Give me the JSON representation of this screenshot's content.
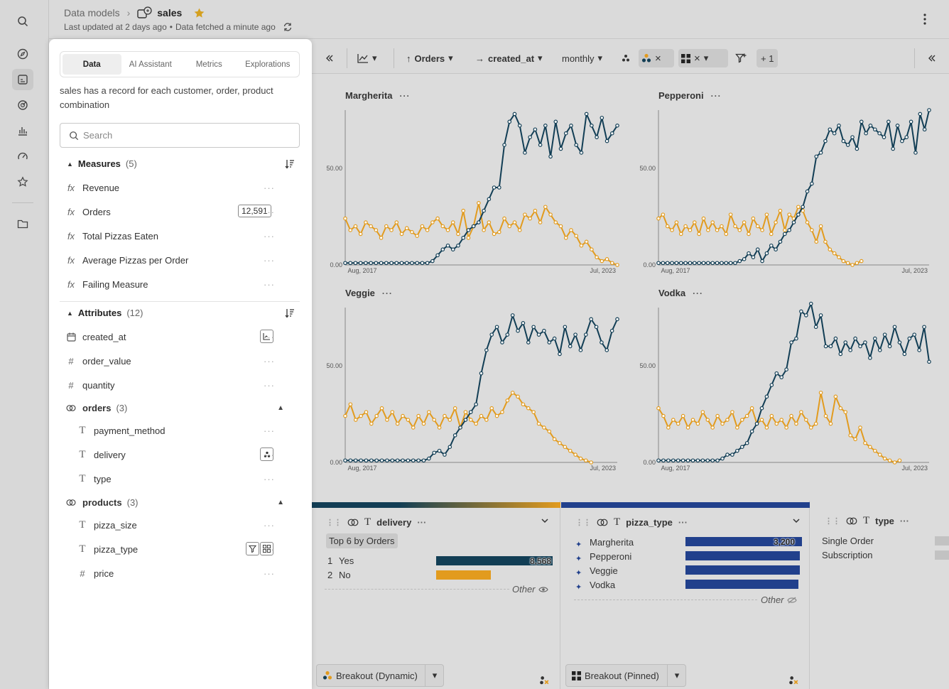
{
  "header": {
    "breadcrumb_root": "Data models",
    "model_name": "sales",
    "last_updated": "Last updated at 2 days ago",
    "bullet": "•",
    "data_fetched": "Data fetched a minute ago"
  },
  "toolbar": {
    "measure": "Orders",
    "dimension": "created_at",
    "granularity": "monthly",
    "extra_filters": "+ 1"
  },
  "panel": {
    "tabs": [
      "Data",
      "AI Assistant",
      "Metrics",
      "Explorations"
    ],
    "description": "sales has a record for each customer, order, product combination",
    "search_placeholder": "Search",
    "measures_title": "Measures",
    "measures_count": "(5)",
    "measures": [
      {
        "label": "Revenue"
      },
      {
        "label": "Orders",
        "badge": "12,591"
      },
      {
        "label": "Total Pizzas Eaten"
      },
      {
        "label": "Average Pizzas per Order"
      },
      {
        "label": "Failing Measure"
      }
    ],
    "attributes_title": "Attributes",
    "attributes_count": "(12)",
    "attributes": [
      {
        "label": "created_at",
        "icon": "calendar"
      },
      {
        "label": "order_value",
        "icon": "#"
      },
      {
        "label": "quantity",
        "icon": "#"
      }
    ],
    "groups": [
      {
        "label": "orders",
        "count": "(3)",
        "items": [
          "payment_method",
          "delivery",
          "type"
        ]
      },
      {
        "label": "products",
        "count": "(3)",
        "items": [
          "pizza_size",
          "pizza_type",
          "price"
        ]
      }
    ],
    "products_price_icon": "#",
    "text_icon": "T",
    "fx_icon": "fx"
  },
  "chart_data": [
    {
      "type": "line",
      "title": "Margherita",
      "x_start": "Aug, 2017",
      "x_end": "Jul, 2023",
      "y_ticks": [
        "0.00",
        "50.00"
      ],
      "ylim": [
        0,
        80
      ],
      "series": [
        {
          "name": "No",
          "color": "#e29b1e",
          "values": [
            24,
            18,
            20,
            16,
            22,
            20,
            18,
            14,
            20,
            18,
            22,
            16,
            19,
            17,
            15,
            20,
            18,
            22,
            24,
            20,
            18,
            22,
            16,
            28,
            14,
            20,
            32,
            18,
            22,
            16,
            17,
            24,
            20,
            22,
            18,
            26,
            24,
            28,
            22,
            30,
            26,
            22,
            20,
            14,
            18,
            15,
            10,
            12,
            8,
            4,
            2,
            3,
            1,
            0
          ]
        },
        {
          "name": "Yes",
          "color": "#123e55",
          "values": [
            1,
            1,
            1,
            1,
            1,
            1,
            1,
            1,
            1,
            1,
            1,
            1,
            1,
            1,
            1,
            1,
            1,
            2,
            5,
            8,
            10,
            8,
            10,
            14,
            18,
            20,
            22,
            28,
            34,
            40,
            40,
            62,
            74,
            78,
            72,
            58,
            66,
            70,
            62,
            72,
            56,
            74,
            60,
            68,
            72,
            62,
            58,
            78,
            72,
            66,
            76,
            64,
            68,
            72
          ]
        }
      ]
    },
    {
      "type": "line",
      "title": "Pepperoni",
      "x_start": "Aug, 2017",
      "x_end": "Jul, 2023",
      "y_ticks": [
        "0.00",
        "50.00"
      ],
      "ylim": [
        0,
        80
      ],
      "series": [
        {
          "name": "No",
          "color": "#e29b1e",
          "values": [
            24,
            26,
            20,
            18,
            22,
            16,
            20,
            18,
            22,
            16,
            24,
            18,
            22,
            18,
            20,
            16,
            26,
            20,
            18,
            22,
            16,
            24,
            20,
            18,
            26,
            16,
            22,
            28,
            18,
            26,
            24,
            30,
            28,
            22,
            18,
            12,
            20,
            12,
            8,
            6,
            4,
            2,
            1,
            0,
            1,
            2
          ]
        },
        {
          "name": "Yes",
          "color": "#123e55",
          "values": [
            1,
            1,
            1,
            1,
            1,
            1,
            1,
            1,
            1,
            1,
            1,
            1,
            1,
            1,
            1,
            1,
            1,
            1,
            2,
            3,
            6,
            4,
            8,
            2,
            6,
            10,
            8,
            12,
            16,
            18,
            22,
            26,
            30,
            38,
            42,
            56,
            58,
            64,
            70,
            68,
            72,
            64,
            62,
            66,
            60,
            74,
            68,
            72,
            70,
            68,
            66,
            74,
            60,
            72,
            64,
            66,
            74,
            58,
            78,
            70,
            80
          ]
        }
      ]
    },
    {
      "type": "line",
      "title": "Veggie",
      "x_start": "Aug, 2017",
      "x_end": "Jul, 2023",
      "y_ticks": [
        "0.00",
        "50.00"
      ],
      "ylim": [
        0,
        80
      ],
      "series": [
        {
          "name": "No",
          "color": "#e29b1e",
          "values": [
            24,
            30,
            22,
            24,
            26,
            20,
            24,
            28,
            22,
            26,
            20,
            24,
            22,
            18,
            24,
            20,
            26,
            22,
            18,
            24,
            22,
            28,
            18,
            26,
            22,
            20,
            24,
            22,
            28,
            24,
            26,
            32,
            36,
            34,
            30,
            28,
            26,
            20,
            18,
            16,
            12,
            10,
            8,
            6,
            4,
            2,
            1,
            0
          ]
        },
        {
          "name": "Yes",
          "color": "#123e55",
          "values": [
            1,
            1,
            1,
            1,
            1,
            1,
            1,
            1,
            1,
            1,
            1,
            1,
            1,
            1,
            1,
            1,
            2,
            5,
            6,
            4,
            8,
            14,
            18,
            22,
            26,
            30,
            46,
            58,
            66,
            70,
            62,
            66,
            76,
            68,
            72,
            62,
            70,
            66,
            68,
            62,
            64,
            56,
            70,
            60,
            66,
            58,
            66,
            74,
            70,
            62,
            58,
            68,
            74
          ]
        }
      ]
    },
    {
      "type": "line",
      "title": "Vodka",
      "x_start": "Aug, 2017",
      "x_end": "Jul, 2023",
      "y_ticks": [
        "0.00",
        "50.00"
      ],
      "ylim": [
        0,
        80
      ],
      "series": [
        {
          "name": "No",
          "color": "#e29b1e",
          "values": [
            28,
            24,
            18,
            22,
            20,
            24,
            18,
            22,
            20,
            26,
            22,
            18,
            24,
            20,
            22,
            26,
            18,
            22,
            24,
            28,
            20,
            22,
            18,
            24,
            20,
            22,
            18,
            24,
            20,
            26,
            22,
            18,
            20,
            36,
            24,
            20,
            34,
            28,
            26,
            14,
            12,
            18,
            10,
            8,
            6,
            4,
            2,
            1,
            0,
            1
          ]
        },
        {
          "name": "Yes",
          "color": "#123e55",
          "values": [
            1,
            1,
            1,
            1,
            1,
            1,
            1,
            1,
            1,
            1,
            1,
            1,
            1,
            2,
            4,
            4,
            6,
            8,
            10,
            16,
            20,
            28,
            34,
            40,
            46,
            44,
            48,
            62,
            64,
            78,
            76,
            82,
            70,
            76,
            60,
            60,
            64,
            56,
            62,
            58,
            64,
            60,
            62,
            54,
            64,
            58,
            66,
            60,
            70,
            62,
            56,
            64,
            66,
            58,
            70,
            52
          ]
        }
      ]
    }
  ],
  "breakdowns": [
    {
      "title": "delivery",
      "top_label": "Top 6 by Orders",
      "rows": [
        {
          "rank": "1",
          "label": "Yes",
          "value": 8568,
          "value_label": "8,568",
          "color": "#123e55"
        },
        {
          "rank": "2",
          "label": "No",
          "value": 4023,
          "color": "#e29b1e"
        }
      ],
      "other": "Other",
      "footer": "Breakout (Dynamic)"
    },
    {
      "title": "pizza_type",
      "rows": [
        {
          "label": "Margherita",
          "value": 3200,
          "value_label": "3,200"
        },
        {
          "label": "Pepperoni",
          "value": 3150
        },
        {
          "label": "Veggie",
          "value": 3140
        },
        {
          "label": "Vodka",
          "value": 3100
        }
      ],
      "bar_color": "#21408c",
      "other": "Other",
      "footer": "Breakout (Pinned)"
    },
    {
      "title": "type",
      "rows": [
        {
          "label": "Single Order"
        },
        {
          "label": "Subscription"
        }
      ]
    }
  ],
  "colors": {
    "yes": "#123e55",
    "no": "#e29b1e",
    "pinned": "#21408c",
    "star": "#d4a020"
  }
}
